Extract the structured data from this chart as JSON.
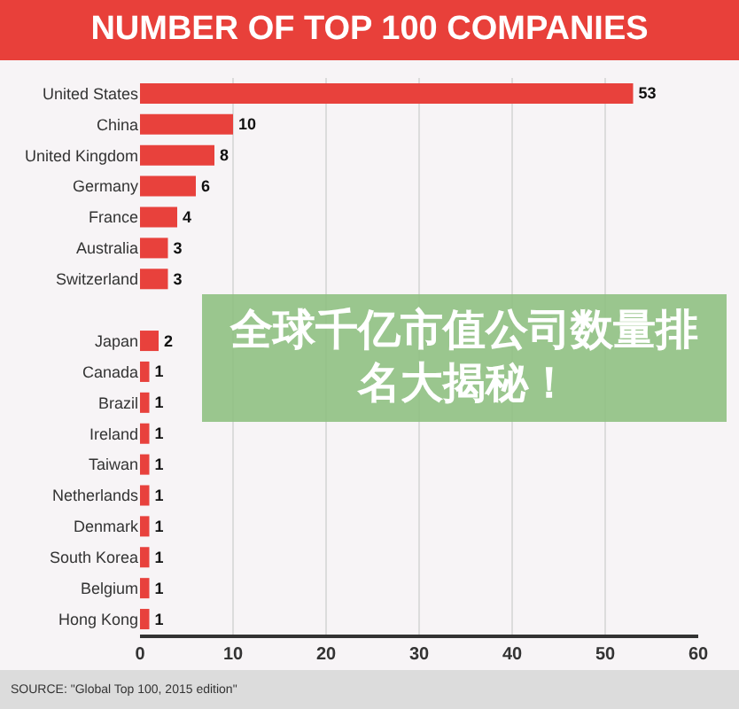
{
  "chart_data": {
    "type": "bar",
    "orientation": "horizontal",
    "title": "NUMBER OF TOP 100 COMPANIES",
    "subtitle": "全球千亿市值公司数量排名大揭秘！",
    "categories": [
      "United States",
      "China",
      "United Kingdom",
      "Germany",
      "France",
      "Australia",
      "Switzerland",
      null,
      "Japan",
      "Canada",
      "Brazil",
      "Ireland",
      "Taiwan",
      "Netherlands",
      "Denmark",
      "South Korea",
      "Belgium",
      "Hong Kong"
    ],
    "values": [
      53,
      10,
      8,
      6,
      4,
      3,
      3,
      null,
      2,
      1,
      1,
      1,
      1,
      1,
      1,
      1,
      1,
      1
    ],
    "color": "#e8413c",
    "xlim": [
      0,
      60
    ],
    "xticks": [
      0,
      10,
      20,
      30,
      40,
      50,
      60
    ],
    "grid": "x",
    "data_labels": true,
    "annotations": [
      "SOURCE: \"Global Top 100, 2015 edition\""
    ]
  }
}
